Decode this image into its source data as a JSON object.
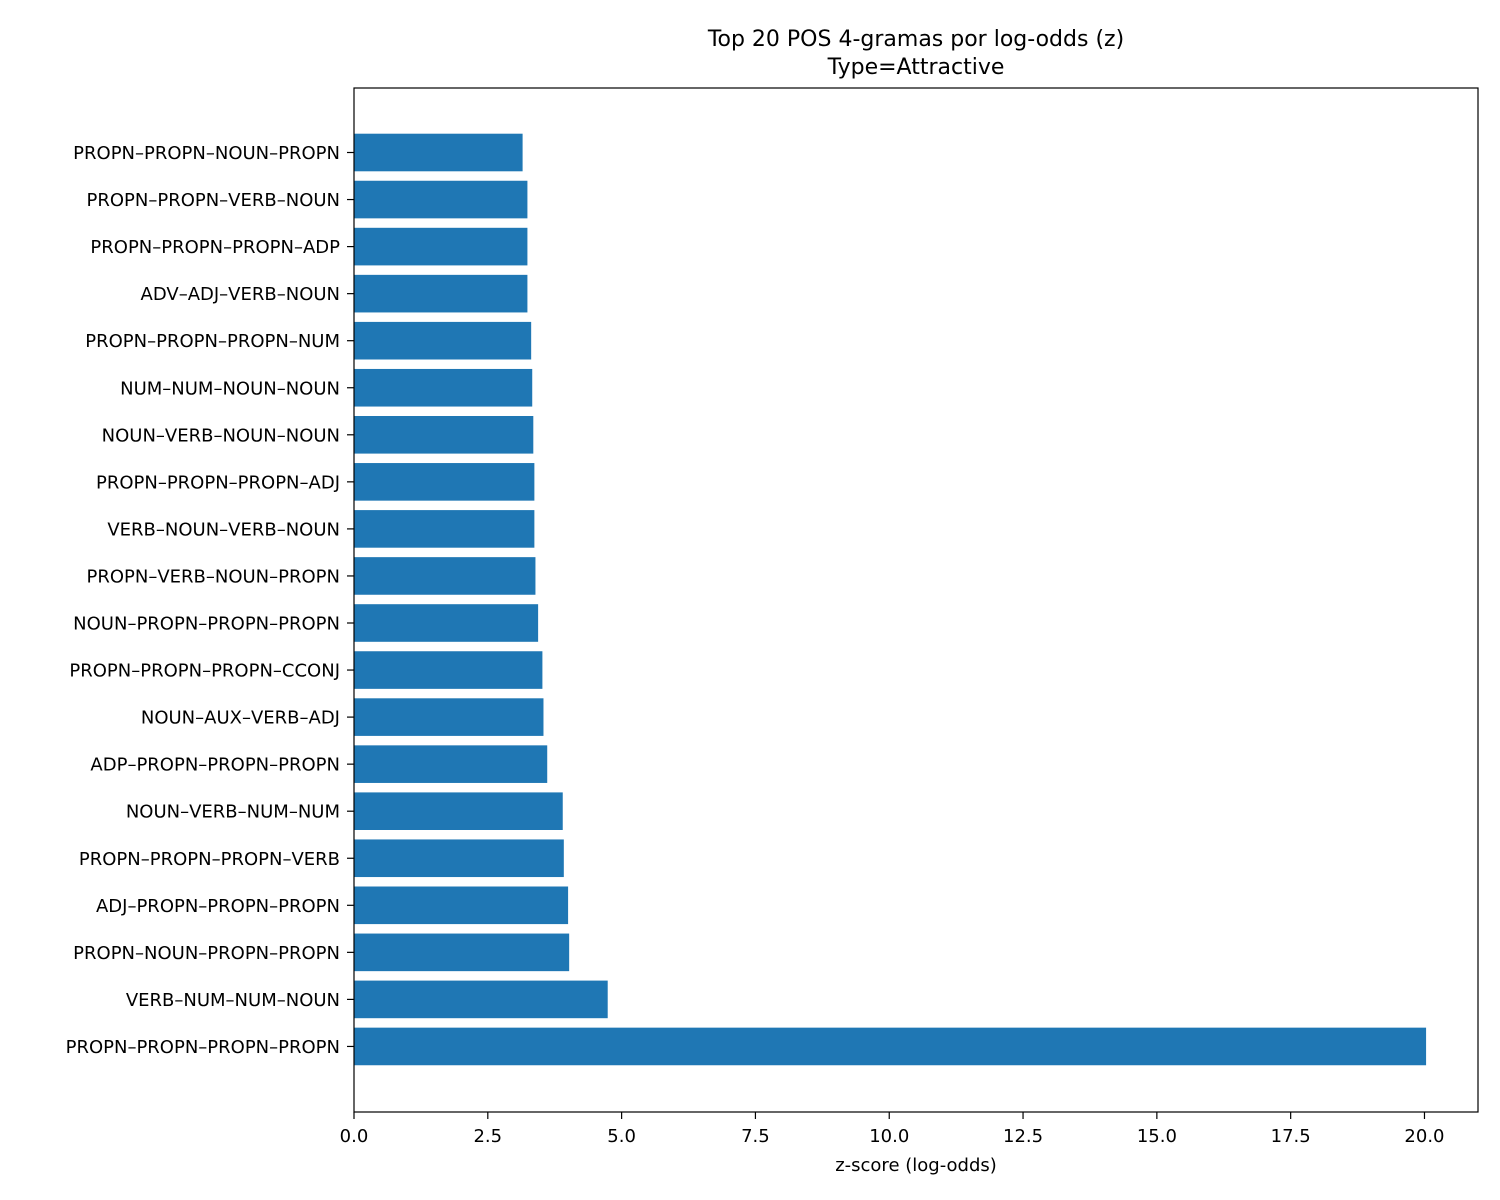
{
  "chart_data": {
    "type": "bar",
    "orientation": "horizontal",
    "title": "Top 20 POS 4-gramas por log-odds (z)",
    "subtitle": "Type=Attractive",
    "xlabel": "z-score (log-odds)",
    "ylabel": "",
    "xlim": [
      0,
      21
    ],
    "xticks": [
      "0.0",
      "2.5",
      "5.0",
      "7.5",
      "10.0",
      "12.5",
      "15.0",
      "17.5",
      "20.0"
    ],
    "grid": false,
    "bar_color": "#1f77b4",
    "categories": [
      "PROPN–PROPN–NOUN–PROPN",
      "PROPN–PROPN–VERB–NOUN",
      "PROPN–PROPN–PROPN–ADP",
      "ADV–ADJ–VERB–NOUN",
      "PROPN–PROPN–PROPN–NUM",
      "NUM–NUM–NOUN–NOUN",
      "NOUN–VERB–NOUN–NOUN",
      "PROPN–PROPN–PROPN–ADJ",
      "VERB–NOUN–VERB–NOUN",
      "PROPN–VERB–NOUN–PROPN",
      "NOUN–PROPN–PROPN–PROPN",
      "PROPN–PROPN–PROPN–CCONJ",
      "NOUN–AUX–VERB–ADJ",
      "ADP–PROPN–PROPN–PROPN",
      "NOUN–VERB–NUM–NUM",
      "PROPN–PROPN–PROPN–VERB",
      "ADJ–PROPN–PROPN–PROPN",
      "PROPN–NOUN–PROPN–PROPN",
      "VERB–NUM–NUM–NOUN",
      "PROPN–PROPN–PROPN–PROPN"
    ],
    "values": [
      3.15,
      3.24,
      3.24,
      3.24,
      3.31,
      3.33,
      3.35,
      3.37,
      3.37,
      3.39,
      3.44,
      3.52,
      3.54,
      3.61,
      3.9,
      3.92,
      4.0,
      4.02,
      4.74,
      20.03
    ]
  }
}
